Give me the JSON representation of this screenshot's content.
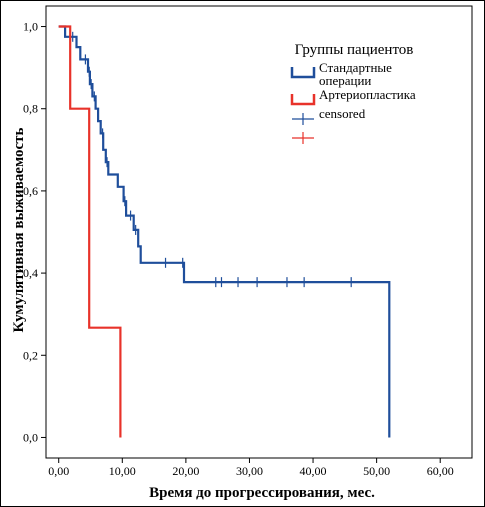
{
  "chart_data": {
    "type": "line",
    "title": "",
    "xlabel": "Время до прогрессирования, мес.",
    "ylabel": "Кумулятивная выживаемость",
    "xlim": [
      -2,
      65
    ],
    "ylim": [
      -0.05,
      1.05
    ],
    "xticks": [
      0,
      10,
      20,
      30,
      40,
      50,
      60
    ],
    "xtick_labels": [
      "0,00",
      "10,00",
      "20,00",
      "30,00",
      "40,00",
      "50,00",
      "60,00"
    ],
    "yticks": [
      0,
      0.2,
      0.4,
      0.6,
      0.8,
      1.0
    ],
    "ytick_labels": [
      "0,0",
      "0,2",
      "0,4",
      "0,6",
      "0,8",
      "1,0"
    ],
    "legend": {
      "title": "Группы пациентов",
      "position": "top-right",
      "entries": [
        {
          "label": "Стандартные операции",
          "label_lines": [
            "Стандартные",
            "операции"
          ],
          "kind": "step",
          "color": "#1f4e9b"
        },
        {
          "label": "Артериопластика",
          "label_lines": [
            "Артериопластика"
          ],
          "kind": "step",
          "color": "#e8322a"
        },
        {
          "label": "censored",
          "label_lines": [
            "censored"
          ],
          "kind": "censor",
          "color": "#1f4e9b"
        },
        {
          "label": "",
          "label_lines": [
            ""
          ],
          "kind": "censor",
          "color": "#e8322a"
        }
      ]
    },
    "series": [
      {
        "name": "Стандартные операции",
        "color": "#1f4e9b",
        "steps": [
          [
            0,
            1.0
          ],
          [
            1.0,
            0.975
          ],
          [
            2.8,
            0.95
          ],
          [
            3.4,
            0.92
          ],
          [
            4.6,
            0.89
          ],
          [
            4.9,
            0.86
          ],
          [
            5.3,
            0.83
          ],
          [
            5.8,
            0.8
          ],
          [
            6.2,
            0.77
          ],
          [
            6.6,
            0.74
          ],
          [
            7.0,
            0.7
          ],
          [
            7.4,
            0.67
          ],
          [
            7.8,
            0.64
          ],
          [
            9.3,
            0.61
          ],
          [
            10.2,
            0.575
          ],
          [
            10.6,
            0.54
          ],
          [
            11.8,
            0.505
          ],
          [
            12.5,
            0.465
          ],
          [
            12.9,
            0.425
          ],
          [
            19.7,
            0.378
          ],
          [
            52.0,
            0.378
          ],
          [
            52.0,
            0.0
          ]
        ],
        "censored": [
          [
            2.2,
            0.975
          ],
          [
            4.2,
            0.92
          ],
          [
            4.8,
            0.89
          ],
          [
            5.1,
            0.86
          ],
          [
            5.6,
            0.83
          ],
          [
            6.9,
            0.74
          ],
          [
            7.6,
            0.67
          ],
          [
            10.4,
            0.575
          ],
          [
            11.3,
            0.54
          ],
          [
            12.1,
            0.505
          ],
          [
            16.8,
            0.425
          ],
          [
            19.5,
            0.425
          ],
          [
            24.7,
            0.378
          ],
          [
            25.6,
            0.378
          ],
          [
            28.2,
            0.378
          ],
          [
            31.2,
            0.378
          ],
          [
            35.9,
            0.378
          ],
          [
            38.6,
            0.378
          ],
          [
            46.0,
            0.378
          ]
        ]
      },
      {
        "name": "Артериопластика",
        "color": "#e8322a",
        "steps": [
          [
            0,
            1.0
          ],
          [
            1.8,
            1.0
          ],
          [
            1.8,
            0.8
          ],
          [
            4.8,
            0.8
          ],
          [
            4.8,
            0.267
          ],
          [
            9.7,
            0.267
          ],
          [
            9.7,
            0.0
          ]
        ],
        "censored": []
      }
    ],
    "grid": false
  }
}
